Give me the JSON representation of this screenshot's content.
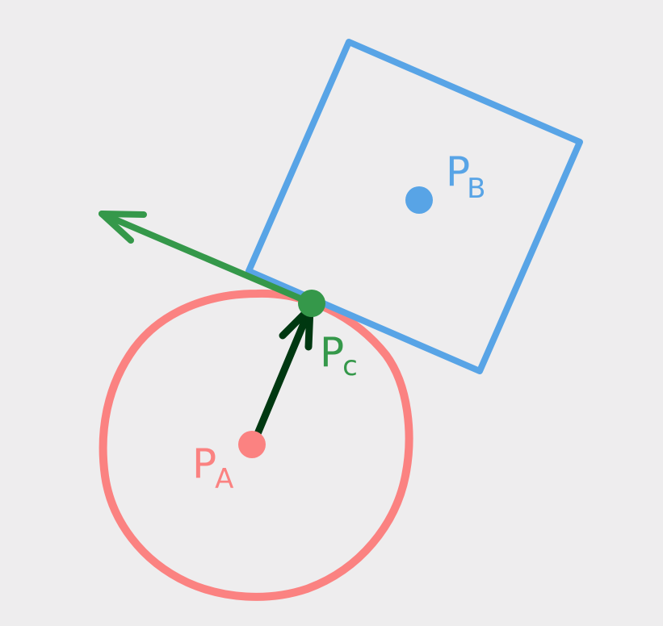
{
  "colors": {
    "background": "#eeedee",
    "body_a": "#fb8281",
    "body_b": "#58a4e6",
    "contact": "#35984a",
    "normal_arrow": "#003811"
  },
  "labels": {
    "point_a": {
      "main": "P",
      "sub": "A"
    },
    "point_b": {
      "main": "P",
      "sub": "B"
    },
    "point_c": {
      "main": "P",
      "sub": "c"
    }
  }
}
